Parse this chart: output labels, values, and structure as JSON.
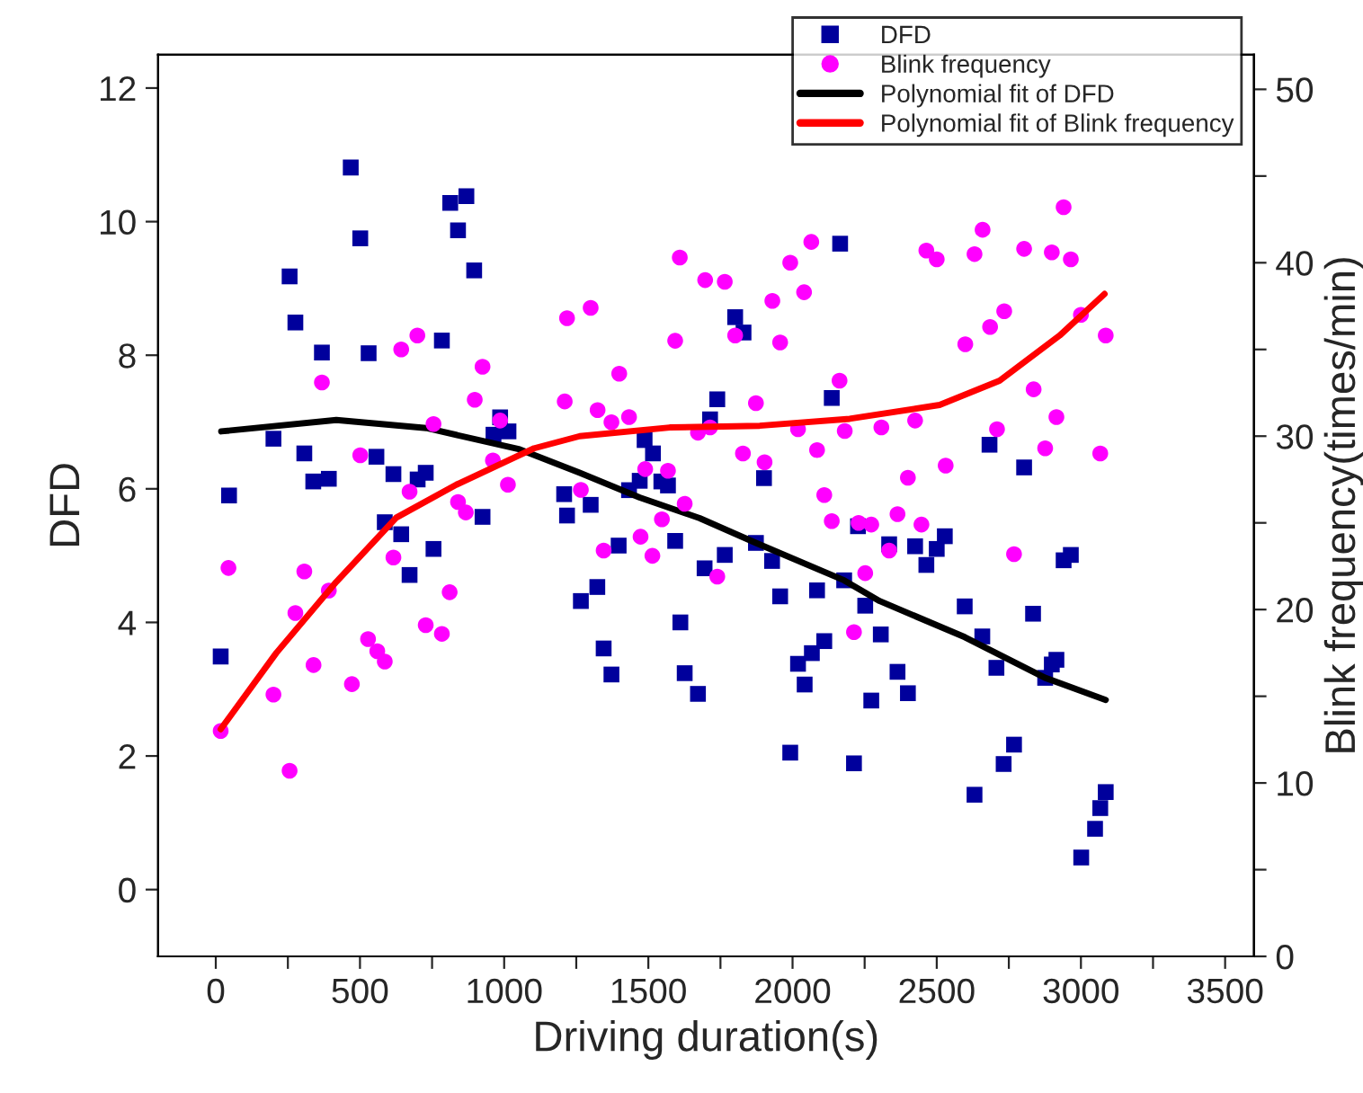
{
  "chart_data": {
    "type": "scatter",
    "xlabel": "Driving duration(s)",
    "ylabel": "DFD",
    "y2label": "Blink frequency(times/min)",
    "xlim": [
      -200,
      3600
    ],
    "xticks": [
      0,
      {
        "value": 250,
        "label": null
      },
      500,
      {
        "value": 750,
        "label": null
      },
      1000,
      {
        "value": 1250,
        "label": null
      },
      1500,
      {
        "value": 1750,
        "label": null
      },
      2000,
      {
        "value": 2250,
        "label": null
      },
      2500,
      {
        "value": 2750,
        "label": null
      },
      3000,
      {
        "value": 3250,
        "label": null
      },
      3500
    ],
    "ylim": [
      -1,
      12.5
    ],
    "yticks": [
      0,
      2,
      4,
      6,
      8,
      10,
      12
    ],
    "y2lim": [
      0,
      52
    ],
    "y2ticks": [
      0,
      {
        "value": 5,
        "label": null
      },
      10,
      {
        "value": 15,
        "label": null
      },
      20,
      {
        "value": 25,
        "label": null
      },
      30,
      {
        "value": 35,
        "label": null
      },
      40,
      {
        "value": 45,
        "label": null
      },
      50
    ],
    "legend": "top right",
    "grid": false,
    "series": [
      {
        "name": "DFD",
        "marker": "square",
        "color": "#00009c",
        "x": [
          17,
          46,
          200,
          256,
          276,
          307,
          338,
          368,
          392,
          468,
          501,
          530,
          557,
          586,
          616,
          643,
          672,
          700,
          728,
          755,
          784,
          813,
          840,
          869,
          896,
          925,
          963,
          986,
          1015,
          1208,
          1218,
          1266,
          1300,
          1323,
          1345,
          1372,
          1397,
          1433,
          1470,
          1487,
          1516,
          1545,
          1568,
          1593,
          1611,
          1626,
          1672,
          1695,
          1714,
          1739,
          1765,
          1801,
          1830,
          1873,
          1901,
          1929,
          1957,
          1992,
          2019,
          2042,
          2067,
          2085,
          2110,
          2136,
          2165,
          2179,
          2213,
          2227,
          2252,
          2273,
          2306,
          2335,
          2364,
          2400,
          2425,
          2464,
          2500,
          2528,
          2597,
          2631,
          2658,
          2683,
          2707,
          2732,
          2768,
          2803,
          2834,
          2876,
          2899,
          2915,
          2940,
          2965,
          3001,
          3049,
          3067,
          3086
        ],
        "values": [
          3.49,
          5.9,
          6.75,
          9.18,
          8.49,
          6.53,
          6.11,
          8.04,
          6.15,
          10.81,
          9.75,
          8.03,
          6.48,
          5.5,
          6.22,
          5.32,
          4.71,
          6.14,
          6.24,
          5.1,
          8.22,
          10.28,
          9.87,
          10.38,
          9.27,
          5.58,
          6.81,
          7.07,
          6.86,
          5.92,
          5.6,
          4.32,
          5.76,
          4.53,
          3.61,
          3.22,
          5.15,
          5.98,
          6.12,
          6.73,
          6.53,
          6.11,
          6.05,
          5.22,
          4.0,
          3.24,
          2.93,
          4.81,
          7.04,
          7.34,
          5.01,
          8.57,
          8.34,
          5.19,
          6.16,
          4.92,
          4.39,
          2.05,
          3.38,
          3.07,
          3.54,
          4.48,
          3.72,
          7.36,
          9.67,
          4.63,
          1.89,
          5.44,
          4.25,
          2.83,
          3.82,
          5.17,
          3.26,
          2.94,
          5.14,
          4.86,
          5.1,
          5.29,
          4.24,
          1.42,
          3.79,
          6.66,
          3.32,
          1.88,
          2.17,
          6.32,
          4.13,
          3.17,
          3.37,
          3.44,
          4.93,
          5.01,
          0.48,
          0.91,
          1.22,
          1.46
        ]
      },
      {
        "name": "Blink frequency",
        "axis": "y2",
        "marker": "circle",
        "color": "#ff00ff",
        "x": [
          17,
          44,
          200,
          256,
          276,
          307,
          339,
          368,
          392,
          472,
          501,
          528,
          560,
          586,
          616,
          643,
          672,
          699,
          728,
          755,
          784,
          811,
          840,
          867,
          898,
          925,
          961,
          986,
          1013,
          1210,
          1218,
          1266,
          1300,
          1324,
          1345,
          1372,
          1399,
          1433,
          1473,
          1489,
          1514,
          1547,
          1568,
          1593,
          1609,
          1626,
          1672,
          1697,
          1714,
          1739,
          1765,
          1801,
          1828,
          1873,
          1903,
          1930,
          1957,
          1992,
          2019,
          2040,
          2065,
          2085,
          2110,
          2136,
          2163,
          2181,
          2213,
          2229,
          2252,
          2273,
          2308,
          2335,
          2364,
          2400,
          2425,
          2447,
          2464,
          2500,
          2531,
          2599,
          2631,
          2659,
          2685,
          2709,
          2734,
          2768,
          2803,
          2836,
          2876,
          2899,
          2915,
          2940,
          2965,
          3000,
          3067,
          3086
        ],
        "values": [
          13.0,
          22.4,
          15.1,
          10.7,
          19.8,
          22.2,
          16.8,
          33.1,
          21.1,
          15.7,
          28.9,
          18.3,
          17.6,
          17.0,
          23.0,
          35.0,
          26.8,
          35.8,
          19.1,
          30.7,
          18.6,
          21.0,
          26.2,
          25.6,
          32.1,
          34.0,
          28.6,
          30.9,
          27.2,
          32.0,
          36.8,
          26.9,
          37.4,
          31.5,
          23.4,
          30.8,
          33.6,
          31.1,
          24.2,
          28.1,
          23.1,
          25.2,
          28.0,
          35.5,
          40.3,
          26.1,
          30.2,
          39.0,
          30.5,
          21.9,
          38.9,
          35.8,
          29.0,
          31.9,
          28.5,
          37.8,
          35.4,
          40.0,
          30.4,
          38.3,
          41.2,
          29.2,
          26.6,
          25.1,
          33.2,
          30.3,
          18.7,
          25.0,
          22.1,
          24.9,
          30.5,
          23.4,
          25.5,
          27.6,
          30.9,
          24.9,
          40.7,
          40.2,
          28.3,
          35.3,
          40.5,
          41.9,
          36.3,
          30.4,
          37.2,
          23.2,
          40.8,
          32.7,
          29.3,
          40.6,
          31.1,
          43.2,
          40.2,
          37.0,
          29.0,
          35.8
        ]
      },
      {
        "name": "Polynomial fit of DFD",
        "type": "line",
        "color": "#000000",
        "x": [
          19,
          418,
          730,
          1054,
          1262,
          1470,
          1678,
          1873,
          2179,
          2302,
          2597,
          2876,
          3086
        ],
        "values": [
          6.86,
          7.03,
          6.91,
          6.59,
          6.24,
          5.87,
          5.56,
          5.19,
          4.63,
          4.32,
          3.78,
          3.17,
          2.84
        ]
      },
      {
        "name": "Polynomial fit of Blink frequency",
        "type": "line",
        "axis": "y2",
        "color": "#ff0000",
        "x": [
          17,
          210,
          418,
          626,
          834,
          1104,
          1262,
          1574,
          1886,
          2198,
          2510,
          2718,
          2926,
          3082
        ],
        "values": [
          13.1,
          17.5,
          21.6,
          25.3,
          27.2,
          29.3,
          30.0,
          30.5,
          30.6,
          31.0,
          31.8,
          33.2,
          35.8,
          38.2
        ]
      }
    ]
  }
}
